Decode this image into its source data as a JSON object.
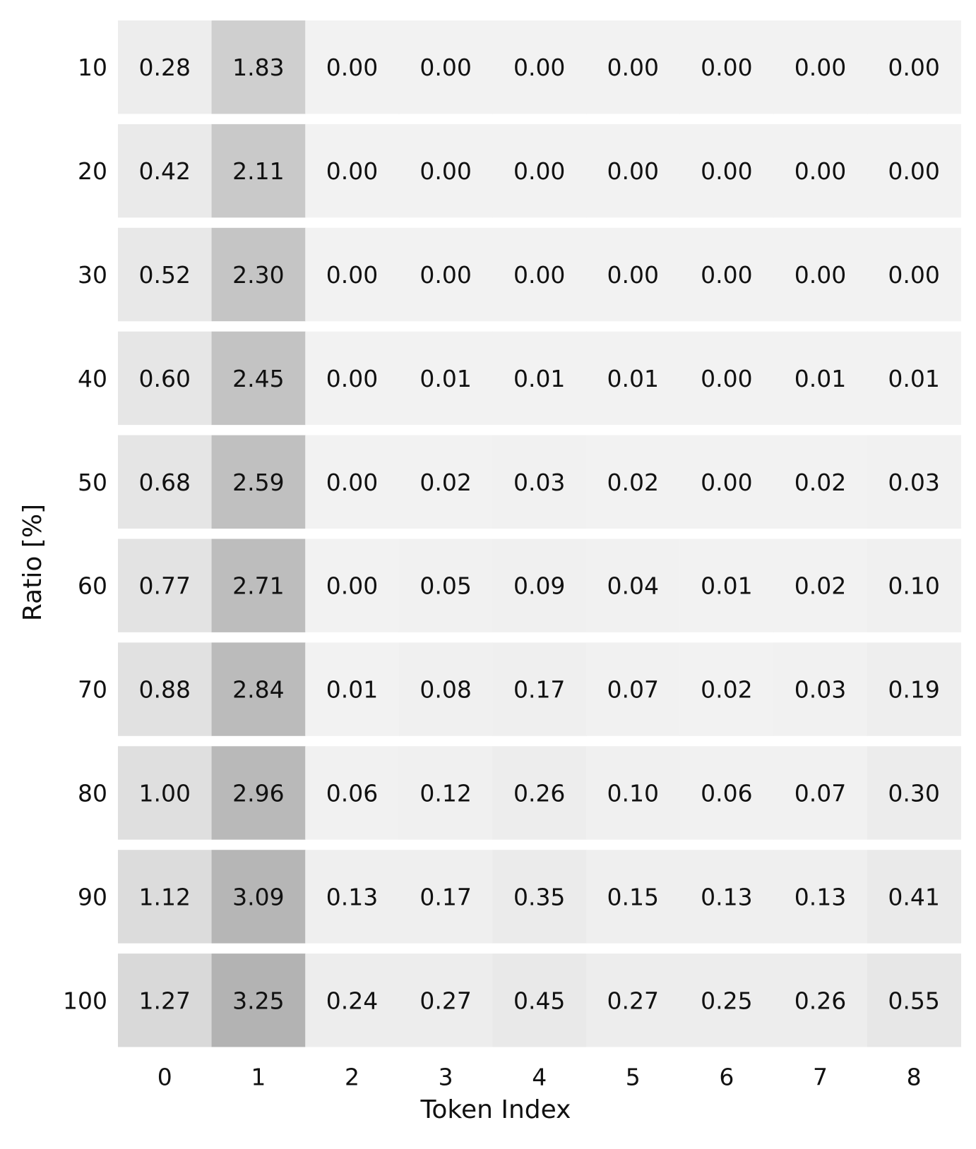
{
  "chart_data": {
    "type": "heatmap",
    "title": "",
    "xlabel": "Token Index",
    "ylabel": "Ratio [%]",
    "x_categories": [
      "0",
      "1",
      "2",
      "3",
      "4",
      "5",
      "6",
      "7",
      "8"
    ],
    "y_categories": [
      "10",
      "20",
      "30",
      "40",
      "50",
      "60",
      "70",
      "80",
      "90",
      "100"
    ],
    "values": [
      [
        0.28,
        1.83,
        0.0,
        0.0,
        0.0,
        0.0,
        0.0,
        0.0,
        0.0
      ],
      [
        0.42,
        2.11,
        0.0,
        0.0,
        0.0,
        0.0,
        0.0,
        0.0,
        0.0
      ],
      [
        0.52,
        2.3,
        0.0,
        0.0,
        0.0,
        0.0,
        0.0,
        0.0,
        0.0
      ],
      [
        0.6,
        2.45,
        0.0,
        0.01,
        0.01,
        0.01,
        0.0,
        0.01,
        0.01
      ],
      [
        0.68,
        2.59,
        0.0,
        0.02,
        0.03,
        0.02,
        0.0,
        0.02,
        0.03
      ],
      [
        0.77,
        2.71,
        0.0,
        0.05,
        0.09,
        0.04,
        0.01,
        0.02,
        0.1
      ],
      [
        0.88,
        2.84,
        0.01,
        0.08,
        0.17,
        0.07,
        0.02,
        0.03,
        0.19
      ],
      [
        1.0,
        2.96,
        0.06,
        0.12,
        0.26,
        0.1,
        0.06,
        0.07,
        0.3
      ],
      [
        1.12,
        3.09,
        0.13,
        0.17,
        0.35,
        0.15,
        0.13,
        0.13,
        0.41
      ],
      [
        1.27,
        3.25,
        0.24,
        0.27,
        0.45,
        0.27,
        0.25,
        0.26,
        0.55
      ]
    ],
    "value_format": "0.00",
    "colormap": {
      "low_color": "#f2f2f2",
      "high_color": "#b3b3b3"
    },
    "grid": false,
    "legend": "none"
  }
}
